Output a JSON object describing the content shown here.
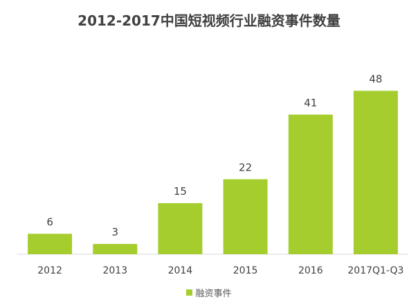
{
  "colors": {
    "bar": "#a6cd2e",
    "axis": "#d9d9d9",
    "label": "#404040",
    "tick": "#404040"
  },
  "chart_data": {
    "type": "bar",
    "title": "2012-2017中国短视频行业融资事件数量",
    "categories": [
      "2012",
      "2013",
      "2014",
      "2015",
      "2016",
      "2017Q1-Q3"
    ],
    "series": [
      {
        "name": "融资事件",
        "values": [
          6,
          3,
          15,
          22,
          41,
          48
        ]
      }
    ],
    "ylim": [
      0,
      50
    ],
    "grid": false,
    "legend": "bottom-center",
    "data_labels": true
  }
}
